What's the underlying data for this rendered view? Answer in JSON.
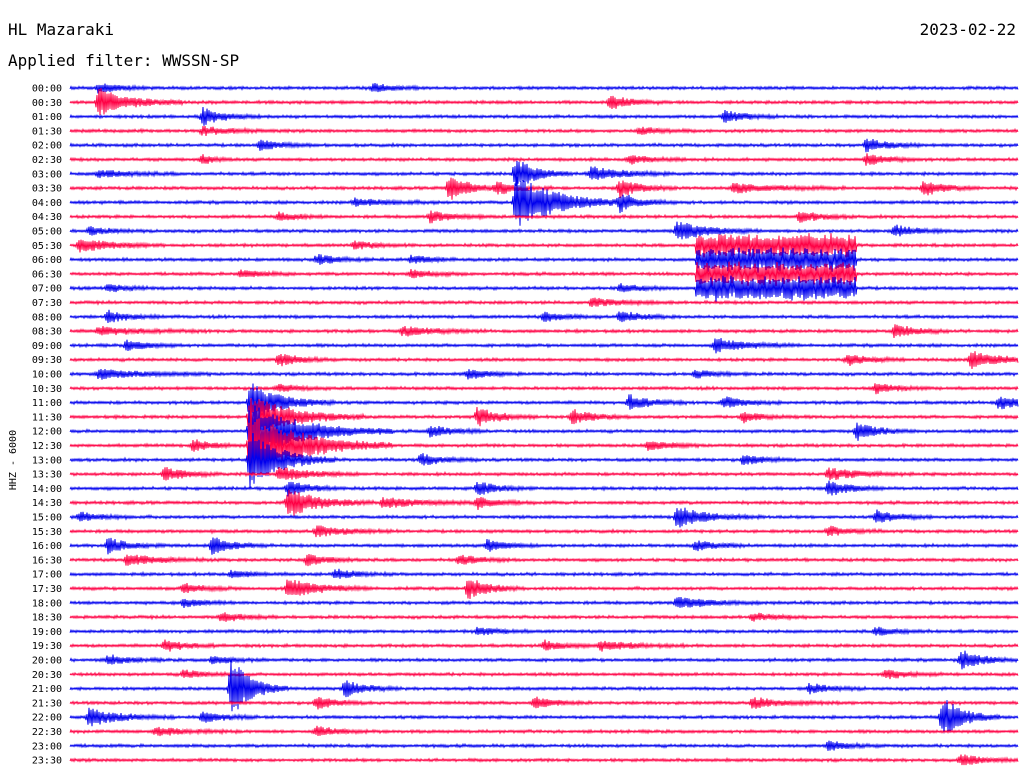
{
  "header": {
    "station": "HL Mazaraki",
    "filter": "Applied filter: WWSSN-SP",
    "date": "2023-02-22",
    "channel": "HHZ - 6000"
  },
  "colors": {
    "trace_a": "#0000ee",
    "trace_b": "#ff0044",
    "background": "#ffffff",
    "text": "#000000"
  },
  "chart_data": {
    "type": "helicorder",
    "title": "HL Mazaraki",
    "subtitle": "Applied filter: WWSSN-SP",
    "date": "2023-02-22",
    "ylabel": "HHZ - 6000",
    "line_labels": [
      "00:00",
      "00:30",
      "01:00",
      "01:30",
      "02:00",
      "02:30",
      "03:00",
      "03:30",
      "04:00",
      "04:30",
      "05:00",
      "05:30",
      "06:00",
      "06:30",
      "07:00",
      "07:30",
      "08:00",
      "08:30",
      "09:00",
      "09:30",
      "10:00",
      "10:30",
      "11:00",
      "11:30",
      "12:00",
      "12:30",
      "13:00",
      "13:30",
      "14:00",
      "14:30",
      "15:00",
      "15:30",
      "16:00",
      "16:30",
      "17:00",
      "17:30",
      "18:00",
      "18:30",
      "19:00",
      "19:30",
      "20:00",
      "20:30",
      "21:00",
      "21:30",
      "22:00",
      "22:30",
      "23:00",
      "23:30"
    ],
    "line_colors": [
      "blue",
      "red",
      "blue",
      "red",
      "blue",
      "red",
      "blue",
      "red",
      "blue",
      "red",
      "blue",
      "red",
      "blue",
      "red",
      "blue",
      "red",
      "blue",
      "red",
      "blue",
      "red",
      "blue",
      "red",
      "blue",
      "red",
      "blue",
      "red",
      "blue",
      "red",
      "blue",
      "red",
      "blue",
      "red",
      "blue",
      "red",
      "blue",
      "red",
      "blue",
      "red",
      "blue",
      "red",
      "blue",
      "red",
      "blue",
      "red",
      "blue",
      "red",
      "blue",
      "red"
    ],
    "line_minutes": 30,
    "events": [
      {
        "line": 0,
        "t": 0.03,
        "amp": 5,
        "dur": 0.02
      },
      {
        "line": 0,
        "t": 0.32,
        "amp": 4,
        "dur": 0.02
      },
      {
        "line": 1,
        "t": 0.03,
        "amp": 14,
        "dur": 0.03
      },
      {
        "line": 1,
        "t": 0.57,
        "amp": 7,
        "dur": 0.02
      },
      {
        "line": 2,
        "t": 0.14,
        "amp": 9,
        "dur": 0.02
      },
      {
        "line": 2,
        "t": 0.69,
        "amp": 6,
        "dur": 0.02
      },
      {
        "line": 3,
        "t": 0.14,
        "amp": 4,
        "dur": 0.03
      },
      {
        "line": 3,
        "t": 0.6,
        "amp": 4,
        "dur": 0.02
      },
      {
        "line": 4,
        "t": 0.2,
        "amp": 5,
        "dur": 0.02
      },
      {
        "line": 4,
        "t": 0.84,
        "amp": 7,
        "dur": 0.02
      },
      {
        "line": 5,
        "t": 0.14,
        "amp": 5,
        "dur": 0.01
      },
      {
        "line": 5,
        "t": 0.59,
        "amp": 5,
        "dur": 0.02
      },
      {
        "line": 5,
        "t": 0.84,
        "amp": 6,
        "dur": 0.02
      },
      {
        "line": 6,
        "t": 0.03,
        "amp": 4,
        "dur": 0.03
      },
      {
        "line": 6,
        "t": 0.47,
        "amp": 16,
        "dur": 0.02
      },
      {
        "line": 6,
        "t": 0.55,
        "amp": 7,
        "dur": 0.03
      },
      {
        "line": 7,
        "t": 0.4,
        "amp": 13,
        "dur": 0.02
      },
      {
        "line": 7,
        "t": 0.45,
        "amp": 6,
        "dur": 0.02
      },
      {
        "line": 7,
        "t": 0.58,
        "amp": 9,
        "dur": 0.02
      },
      {
        "line": 7,
        "t": 0.7,
        "amp": 5,
        "dur": 0.04
      },
      {
        "line": 7,
        "t": 0.9,
        "amp": 8,
        "dur": 0.02
      },
      {
        "line": 8,
        "t": 0.47,
        "amp": 28,
        "dur": 0.04
      },
      {
        "line": 8,
        "t": 0.58,
        "amp": 8,
        "dur": 0.02
      },
      {
        "line": 8,
        "t": 0.3,
        "amp": 4,
        "dur": 0.03
      },
      {
        "line": 9,
        "t": 0.38,
        "amp": 6,
        "dur": 0.02
      },
      {
        "line": 9,
        "t": 0.22,
        "amp": 4,
        "dur": 0.02
      },
      {
        "line": 9,
        "t": 0.77,
        "amp": 6,
        "dur": 0.02
      },
      {
        "line": 10,
        "t": 0.64,
        "amp": 10,
        "dur": 0.03
      },
      {
        "line": 10,
        "t": 0.87,
        "amp": 6,
        "dur": 0.02
      },
      {
        "line": 10,
        "t": 0.02,
        "amp": 4,
        "dur": 0.02
      },
      {
        "line": 11,
        "t": 0.01,
        "amp": 7,
        "dur": 0.03
      },
      {
        "line": 11,
        "t": 0.3,
        "amp": 4,
        "dur": 0.02
      },
      {
        "line": 12,
        "t": 0.26,
        "amp": 5,
        "dur": 0.02
      },
      {
        "line": 12,
        "t": 0.36,
        "amp": 4,
        "dur": 0.02
      },
      {
        "line": 13,
        "t": 0.36,
        "amp": 4,
        "dur": 0.02
      },
      {
        "line": 13,
        "t": 0.18,
        "amp": 4,
        "dur": 0.02
      },
      {
        "line": 14,
        "t": 0.04,
        "amp": 4,
        "dur": 0.02
      },
      {
        "line": 14,
        "t": 0.58,
        "amp": 4,
        "dur": 0.02
      },
      {
        "line": 15,
        "t": 0.55,
        "amp": 4,
        "dur": 0.03
      },
      {
        "line": 16,
        "t": 0.04,
        "amp": 6,
        "dur": 0.02
      },
      {
        "line": 16,
        "t": 0.5,
        "amp": 5,
        "dur": 0.02
      },
      {
        "line": 16,
        "t": 0.58,
        "amp": 6,
        "dur": 0.02
      },
      {
        "line": 17,
        "t": 0.03,
        "amp": 4,
        "dur": 0.04
      },
      {
        "line": 17,
        "t": 0.35,
        "amp": 5,
        "dur": 0.03
      },
      {
        "line": 17,
        "t": 0.87,
        "amp": 7,
        "dur": 0.02
      },
      {
        "line": 18,
        "t": 0.06,
        "amp": 5,
        "dur": 0.02
      },
      {
        "line": 18,
        "t": 0.68,
        "amp": 7,
        "dur": 0.03
      },
      {
        "line": 19,
        "t": 0.22,
        "amp": 7,
        "dur": 0.02
      },
      {
        "line": 19,
        "t": 0.82,
        "amp": 6,
        "dur": 0.02
      },
      {
        "line": 19,
        "t": 0.95,
        "amp": 9,
        "dur": 0.03
      },
      {
        "line": 20,
        "t": 0.03,
        "amp": 5,
        "dur": 0.04
      },
      {
        "line": 20,
        "t": 0.42,
        "amp": 5,
        "dur": 0.02
      },
      {
        "line": 20,
        "t": 0.66,
        "amp": 4,
        "dur": 0.02
      },
      {
        "line": 21,
        "t": 0.22,
        "amp": 4,
        "dur": 0.02
      },
      {
        "line": 21,
        "t": 0.85,
        "amp": 5,
        "dur": 0.02
      },
      {
        "line": 22,
        "t": 0.19,
        "amp": 20,
        "dur": 0.03
      },
      {
        "line": 22,
        "t": 0.59,
        "amp": 8,
        "dur": 0.02
      },
      {
        "line": 22,
        "t": 0.69,
        "amp": 6,
        "dur": 0.02
      },
      {
        "line": 22,
        "t": 0.98,
        "amp": 7,
        "dur": 0.02
      },
      {
        "line": 23,
        "t": 0.19,
        "amp": 22,
        "dur": 0.04
      },
      {
        "line": 23,
        "t": 0.43,
        "amp": 10,
        "dur": 0.02
      },
      {
        "line": 23,
        "t": 0.53,
        "amp": 7,
        "dur": 0.02
      },
      {
        "line": 23,
        "t": 0.71,
        "amp": 5,
        "dur": 0.02
      },
      {
        "line": 24,
        "t": 0.19,
        "amp": 28,
        "dur": 0.05
      },
      {
        "line": 24,
        "t": 0.38,
        "amp": 6,
        "dur": 0.02
      },
      {
        "line": 24,
        "t": 0.83,
        "amp": 9,
        "dur": 0.02
      },
      {
        "line": 25,
        "t": 0.19,
        "amp": 35,
        "dur": 0.05
      },
      {
        "line": 25,
        "t": 0.13,
        "amp": 6,
        "dur": 0.02
      },
      {
        "line": 25,
        "t": 0.61,
        "amp": 5,
        "dur": 0.02
      },
      {
        "line": 26,
        "t": 0.19,
        "amp": 30,
        "dur": 0.03
      },
      {
        "line": 26,
        "t": 0.37,
        "amp": 6,
        "dur": 0.02
      },
      {
        "line": 26,
        "t": 0.71,
        "amp": 5,
        "dur": 0.02
      },
      {
        "line": 27,
        "t": 0.1,
        "amp": 7,
        "dur": 0.02
      },
      {
        "line": 27,
        "t": 0.22,
        "amp": 7,
        "dur": 0.03
      },
      {
        "line": 27,
        "t": 0.8,
        "amp": 6,
        "dur": 0.03
      },
      {
        "line": 28,
        "t": 0.23,
        "amp": 8,
        "dur": 0.02
      },
      {
        "line": 28,
        "t": 0.43,
        "amp": 7,
        "dur": 0.02
      },
      {
        "line": 28,
        "t": 0.8,
        "amp": 8,
        "dur": 0.02
      },
      {
        "line": 29,
        "t": 0.23,
        "amp": 15,
        "dur": 0.03
      },
      {
        "line": 29,
        "t": 0.33,
        "amp": 5,
        "dur": 0.04
      },
      {
        "line": 29,
        "t": 0.43,
        "amp": 6,
        "dur": 0.02
      },
      {
        "line": 30,
        "t": 0.01,
        "amp": 5,
        "dur": 0.02
      },
      {
        "line": 30,
        "t": 0.64,
        "amp": 11,
        "dur": 0.03
      },
      {
        "line": 30,
        "t": 0.85,
        "amp": 7,
        "dur": 0.02
      },
      {
        "line": 31,
        "t": 0.26,
        "amp": 5,
        "dur": 0.03
      },
      {
        "line": 31,
        "t": 0.8,
        "amp": 5,
        "dur": 0.02
      },
      {
        "line": 32,
        "t": 0.04,
        "amp": 8,
        "dur": 0.02
      },
      {
        "line": 32,
        "t": 0.15,
        "amp": 9,
        "dur": 0.02
      },
      {
        "line": 32,
        "t": 0.44,
        "amp": 6,
        "dur": 0.02
      },
      {
        "line": 32,
        "t": 0.66,
        "amp": 5,
        "dur": 0.02
      },
      {
        "line": 33,
        "t": 0.06,
        "amp": 6,
        "dur": 0.03
      },
      {
        "line": 33,
        "t": 0.25,
        "amp": 6,
        "dur": 0.02
      },
      {
        "line": 33,
        "t": 0.41,
        "amp": 5,
        "dur": 0.02
      },
      {
        "line": 34,
        "t": 0.17,
        "amp": 4,
        "dur": 0.02
      },
      {
        "line": 34,
        "t": 0.28,
        "amp": 5,
        "dur": 0.02
      },
      {
        "line": 35,
        "t": 0.23,
        "amp": 10,
        "dur": 0.03
      },
      {
        "line": 35,
        "t": 0.42,
        "amp": 11,
        "dur": 0.02
      },
      {
        "line": 35,
        "t": 0.12,
        "amp": 5,
        "dur": 0.02
      },
      {
        "line": 36,
        "t": 0.12,
        "amp": 4,
        "dur": 0.02
      },
      {
        "line": 36,
        "t": 0.64,
        "amp": 6,
        "dur": 0.03
      },
      {
        "line": 37,
        "t": 0.16,
        "amp": 5,
        "dur": 0.02
      },
      {
        "line": 37,
        "t": 0.72,
        "amp": 4,
        "dur": 0.02
      },
      {
        "line": 38,
        "t": 0.43,
        "amp": 4,
        "dur": 0.02
      },
      {
        "line": 38,
        "t": 0.85,
        "amp": 4,
        "dur": 0.02
      },
      {
        "line": 39,
        "t": 0.1,
        "amp": 6,
        "dur": 0.02
      },
      {
        "line": 39,
        "t": 0.5,
        "amp": 5,
        "dur": 0.02
      },
      {
        "line": 39,
        "t": 0.56,
        "amp": 5,
        "dur": 0.03
      },
      {
        "line": 40,
        "t": 0.04,
        "amp": 5,
        "dur": 0.02
      },
      {
        "line": 40,
        "t": 0.15,
        "amp": 4,
        "dur": 0.02
      },
      {
        "line": 40,
        "t": 0.94,
        "amp": 10,
        "dur": 0.02
      },
      {
        "line": 41,
        "t": 0.12,
        "amp": 4,
        "dur": 0.02
      },
      {
        "line": 41,
        "t": 0.86,
        "amp": 5,
        "dur": 0.02
      },
      {
        "line": 42,
        "t": 0.17,
        "amp": 30,
        "dur": 0.02
      },
      {
        "line": 42,
        "t": 0.29,
        "amp": 8,
        "dur": 0.02
      },
      {
        "line": 42,
        "t": 0.78,
        "amp": 5,
        "dur": 0.02
      },
      {
        "line": 43,
        "t": 0.26,
        "amp": 6,
        "dur": 0.02
      },
      {
        "line": 43,
        "t": 0.49,
        "amp": 6,
        "dur": 0.02
      },
      {
        "line": 43,
        "t": 0.72,
        "amp": 5,
        "dur": 0.03
      },
      {
        "line": 44,
        "t": 0.02,
        "amp": 9,
        "dur": 0.03
      },
      {
        "line": 44,
        "t": 0.14,
        "amp": 6,
        "dur": 0.02
      },
      {
        "line": 44,
        "t": 0.92,
        "amp": 22,
        "dur": 0.02
      },
      {
        "line": 45,
        "t": 0.09,
        "amp": 4,
        "dur": 0.03
      },
      {
        "line": 45,
        "t": 0.26,
        "amp": 5,
        "dur": 0.02
      },
      {
        "line": 46,
        "t": 0.8,
        "amp": 5,
        "dur": 0.02
      },
      {
        "line": 47,
        "t": 0.94,
        "amp": 6,
        "dur": 0.02
      }
    ],
    "noise_bursts": [
      {
        "start_line": 11,
        "end_line": 14,
        "t0": 0.66,
        "t1": 0.83,
        "amp": 12
      }
    ]
  }
}
